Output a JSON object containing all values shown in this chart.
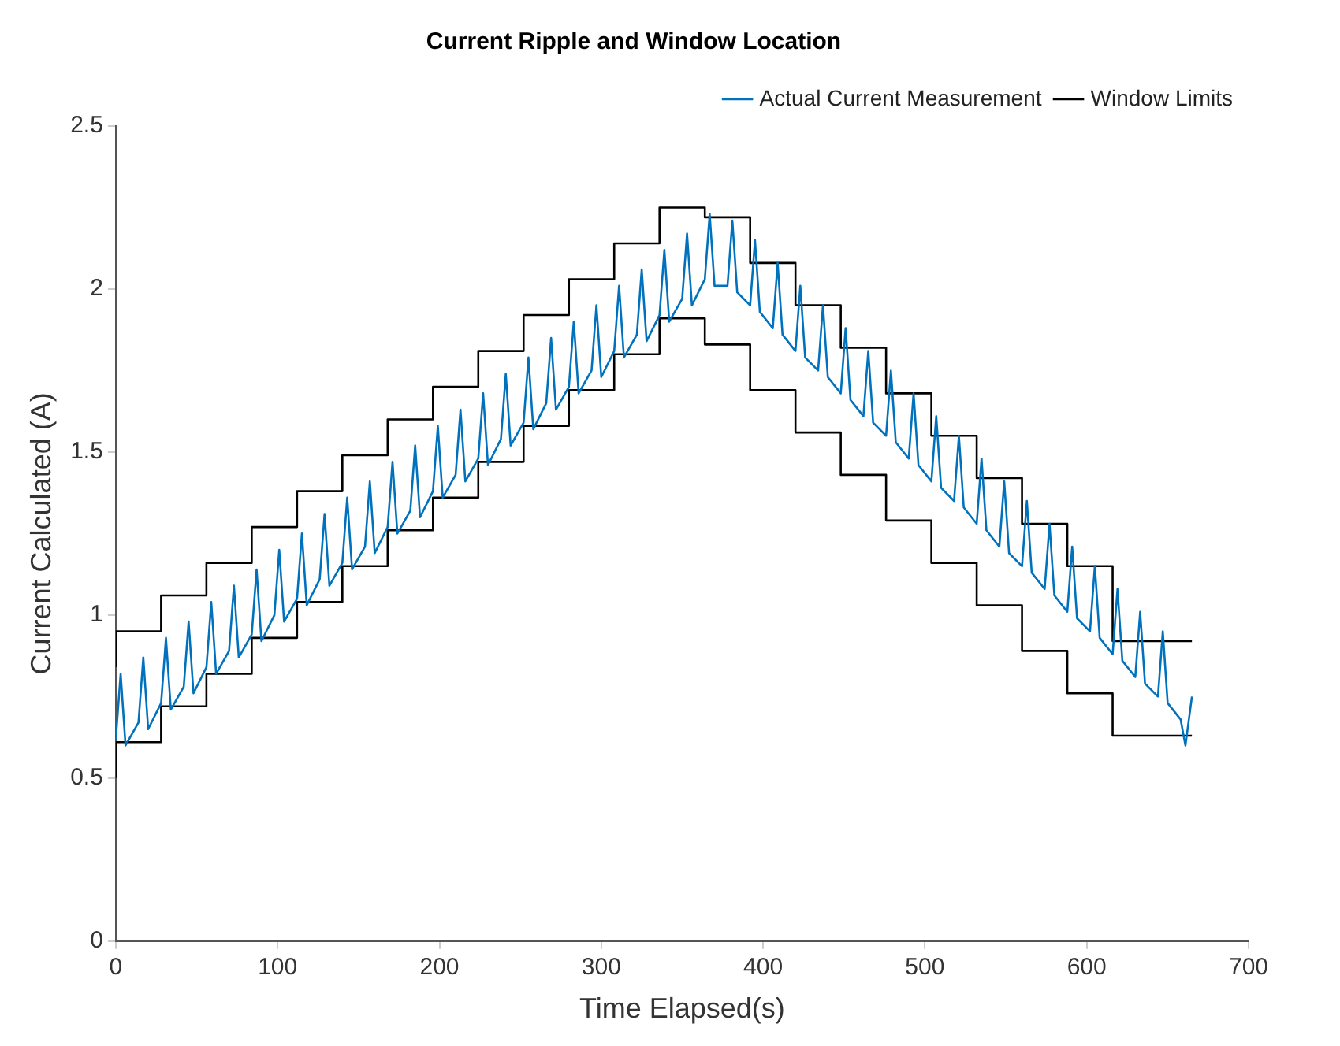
{
  "chart_data": {
    "type": "line",
    "title": "Current Ripple and Window Location",
    "xlabel": "Time Elapsed(s)",
    "ylabel": "Current Calculated (A)",
    "xlim": [
      0,
      700
    ],
    "xticks": [
      0,
      100,
      200,
      300,
      400,
      500,
      600,
      700
    ],
    "ylim": [
      0,
      2.5
    ],
    "yticks": [
      0,
      0.5,
      1,
      1.5,
      2,
      2.5
    ],
    "grid": false,
    "legend": "top right",
    "marker": "none",
    "line_style": "solid",
    "series": [
      {
        "name": "Actual Current Measurement",
        "color": "#0072bd",
        "x": [
          0,
          3,
          6,
          14,
          17,
          20,
          28,
          31,
          34,
          42,
          45,
          48,
          56,
          59,
          62,
          70,
          73,
          76,
          84,
          87,
          90,
          98,
          101,
          104,
          112,
          115,
          118,
          126,
          129,
          132,
          140,
          143,
          146,
          154,
          157,
          160,
          168,
          171,
          174,
          182,
          185,
          188,
          196,
          199,
          202,
          210,
          213,
          216,
          224,
          227,
          230,
          238,
          241,
          244,
          252,
          255,
          258,
          266,
          269,
          272,
          280,
          283,
          286,
          294,
          297,
          300,
          308,
          311,
          314,
          322,
          325,
          328,
          336,
          339,
          342,
          350,
          353,
          356,
          364,
          367,
          370,
          378,
          381,
          384,
          392,
          395,
          398,
          406,
          409,
          412,
          420,
          423,
          426,
          434,
          437,
          440,
          448,
          451,
          454,
          462,
          465,
          468,
          476,
          479,
          482,
          490,
          493,
          496,
          504,
          507,
          510,
          518,
          521,
          524,
          532,
          535,
          538,
          546,
          549,
          552,
          560,
          563,
          566,
          574,
          577,
          580,
          588,
          591,
          594,
          602,
          605,
          608,
          616,
          619,
          622,
          630,
          633,
          636,
          644,
          647,
          650,
          658,
          661,
          665
        ],
        "values": [
          0.62,
          0.82,
          0.6,
          0.67,
          0.87,
          0.65,
          0.73,
          0.93,
          0.71,
          0.78,
          0.98,
          0.76,
          0.84,
          1.04,
          0.82,
          0.89,
          1.09,
          0.87,
          0.94,
          1.14,
          0.92,
          1.0,
          1.2,
          0.98,
          1.05,
          1.25,
          1.03,
          1.11,
          1.31,
          1.09,
          1.16,
          1.36,
          1.14,
          1.21,
          1.41,
          1.19,
          1.27,
          1.47,
          1.25,
          1.32,
          1.52,
          1.3,
          1.38,
          1.58,
          1.36,
          1.43,
          1.63,
          1.41,
          1.48,
          1.68,
          1.46,
          1.54,
          1.74,
          1.52,
          1.59,
          1.79,
          1.57,
          1.65,
          1.85,
          1.63,
          1.7,
          1.9,
          1.68,
          1.75,
          1.95,
          1.73,
          1.81,
          2.01,
          1.79,
          1.86,
          2.06,
          1.84,
          1.92,
          2.12,
          1.9,
          1.97,
          2.17,
          1.95,
          2.03,
          2.23,
          2.01,
          2.01,
          2.21,
          1.99,
          1.95,
          2.15,
          1.93,
          1.88,
          2.08,
          1.86,
          1.81,
          2.01,
          1.79,
          1.75,
          1.95,
          1.73,
          1.68,
          1.88,
          1.66,
          1.61,
          1.81,
          1.59,
          1.55,
          1.75,
          1.53,
          1.48,
          1.68,
          1.46,
          1.41,
          1.61,
          1.39,
          1.35,
          1.55,
          1.33,
          1.28,
          1.48,
          1.26,
          1.21,
          1.41,
          1.19,
          1.15,
          1.35,
          1.13,
          1.08,
          1.28,
          1.06,
          1.01,
          1.21,
          0.99,
          0.95,
          1.15,
          0.93,
          0.88,
          1.08,
          0.86,
          0.81,
          1.01,
          0.79,
          0.75,
          0.95,
          0.73,
          0.68,
          0.6,
          0.75
        ]
      },
      {
        "name": "Window Limits",
        "type": "step",
        "color": "#000000",
        "x": [
          0,
          28,
          56,
          84,
          112,
          140,
          168,
          196,
          224,
          252,
          280,
          308,
          336,
          364,
          392,
          420,
          448,
          476,
          504,
          532,
          560,
          588,
          616,
          644,
          665
        ],
        "values": [
          0.84,
          0.95,
          1.06,
          1.16,
          1.27,
          1.38,
          1.49,
          1.6,
          1.7,
          1.81,
          1.92,
          2.03,
          2.14,
          2.25,
          2.22,
          2.08,
          1.95,
          1.82,
          1.68,
          1.55,
          1.42,
          1.28,
          1.15,
          0.92,
          0.92
        ]
      },
      {
        "type": "step",
        "color": "#000000",
        "x": [
          0,
          28,
          56,
          84,
          112,
          140,
          168,
          196,
          224,
          252,
          280,
          308,
          336,
          364,
          392,
          420,
          448,
          476,
          504,
          532,
          560,
          588,
          616,
          644,
          665
        ],
        "values": [
          0.5,
          0.61,
          0.72,
          0.82,
          0.93,
          1.04,
          1.15,
          1.26,
          1.36,
          1.47,
          1.58,
          1.69,
          1.8,
          1.91,
          1.83,
          1.69,
          1.56,
          1.43,
          1.29,
          1.16,
          1.03,
          0.89,
          0.76,
          0.63,
          0.63
        ]
      }
    ]
  }
}
